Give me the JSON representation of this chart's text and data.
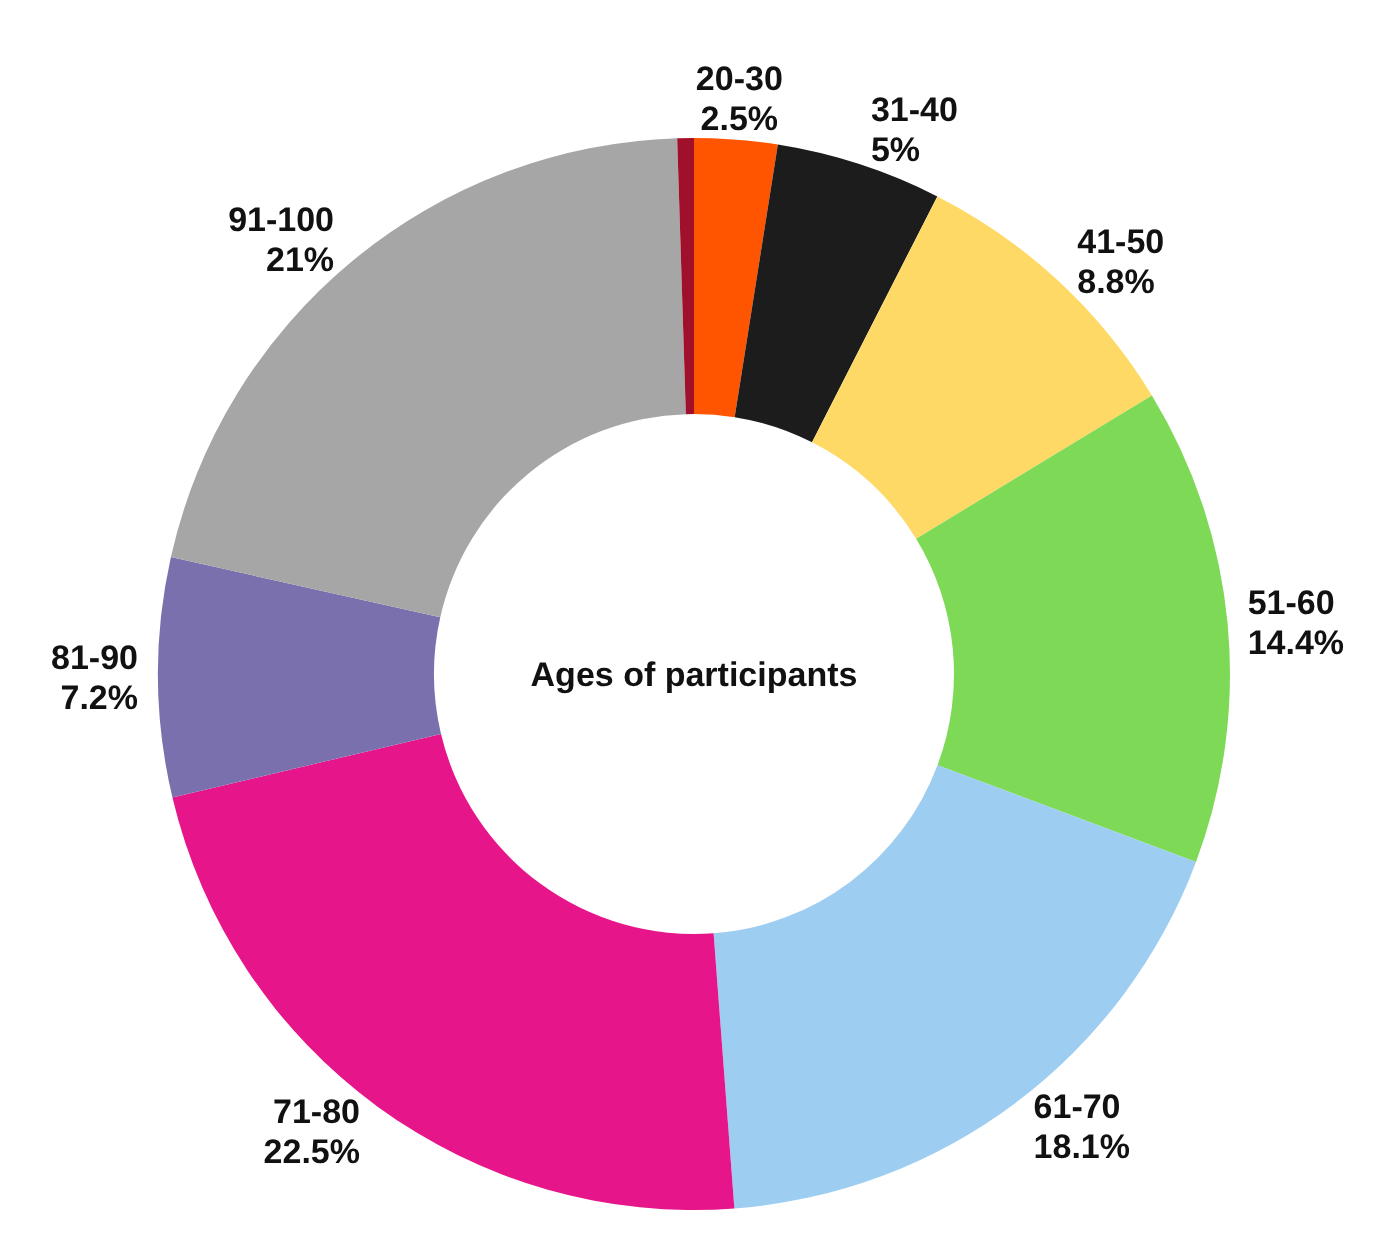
{
  "chart_data": {
    "type": "donut",
    "title": "Ages of participants",
    "categories": [
      "20-30",
      "31-40",
      "41-50",
      "51-60",
      "61-70",
      "71-80",
      "81-90",
      "91-100",
      null
    ],
    "values": [
      2.5,
      5,
      8.8,
      14.4,
      18.1,
      22.5,
      7.2,
      21,
      0.5
    ],
    "value_labels": [
      "2.5%",
      "5%",
      "8.8%",
      "14.4%",
      "18.1%",
      "22.5%",
      "7.2%",
      "21%",
      null
    ],
    "colors": [
      "#ff5500",
      "#1c1c1c",
      "#ffd966",
      "#7ed957",
      "#9dcdf0",
      "#e6158a",
      "#7b70ae",
      "#a6a6a6",
      "#a0102a"
    ]
  }
}
